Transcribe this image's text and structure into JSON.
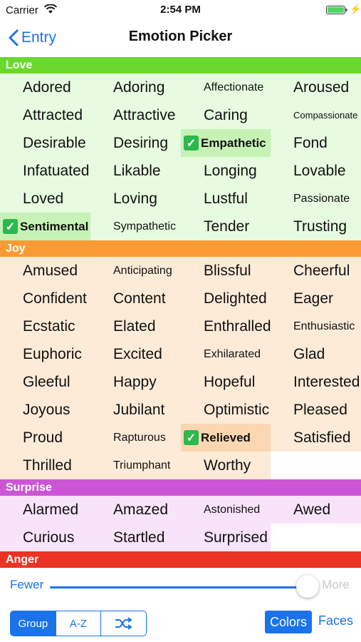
{
  "status": {
    "carrier": "Carrier",
    "time": "2:54 PM"
  },
  "nav": {
    "back_label": "Entry",
    "title": "Emotion Picker"
  },
  "sections": [
    {
      "name": "Love",
      "header_color": "#6bd82e",
      "cell_color": "#e6fbe0",
      "selected_color": "#c7f2b6",
      "items": [
        {
          "label": "Adored",
          "size": "normal"
        },
        {
          "label": "Adoring",
          "size": "normal"
        },
        {
          "label": "Affectionate",
          "size": "small"
        },
        {
          "label": "Aroused",
          "size": "normal"
        },
        {
          "label": "Attracted",
          "size": "normal"
        },
        {
          "label": "Attractive",
          "size": "normal"
        },
        {
          "label": "Caring",
          "size": "normal"
        },
        {
          "label": "Compassionate",
          "size": "xsmall"
        },
        {
          "label": "Desirable",
          "size": "normal"
        },
        {
          "label": "Desiring",
          "size": "normal"
        },
        {
          "label": "Empathetic",
          "size": "normal",
          "selected": true
        },
        {
          "label": "Fond",
          "size": "normal"
        },
        {
          "label": "Infatuated",
          "size": "normal"
        },
        {
          "label": "Likable",
          "size": "normal"
        },
        {
          "label": "Longing",
          "size": "normal"
        },
        {
          "label": "Lovable",
          "size": "normal"
        },
        {
          "label": "Loved",
          "size": "normal"
        },
        {
          "label": "Loving",
          "size": "normal"
        },
        {
          "label": "Lustful",
          "size": "normal"
        },
        {
          "label": "Passionate",
          "size": "small"
        },
        {
          "label": "Sentimental",
          "size": "normal",
          "selected": true
        },
        {
          "label": "Sympathetic",
          "size": "small"
        },
        {
          "label": "Tender",
          "size": "normal"
        },
        {
          "label": "Trusting",
          "size": "normal"
        }
      ]
    },
    {
      "name": "Joy",
      "header_color": "#f99b35",
      "cell_color": "#fdebd8",
      "selected_color": "#fad7b0",
      "items": [
        {
          "label": "Amused",
          "size": "normal"
        },
        {
          "label": "Anticipating",
          "size": "small"
        },
        {
          "label": "Blissful",
          "size": "normal"
        },
        {
          "label": "Cheerful",
          "size": "normal"
        },
        {
          "label": "Confident",
          "size": "normal"
        },
        {
          "label": "Content",
          "size": "normal"
        },
        {
          "label": "Delighted",
          "size": "normal"
        },
        {
          "label": "Eager",
          "size": "normal"
        },
        {
          "label": "Ecstatic",
          "size": "normal"
        },
        {
          "label": "Elated",
          "size": "normal"
        },
        {
          "label": "Enthralled",
          "size": "normal"
        },
        {
          "label": "Enthusiastic",
          "size": "small"
        },
        {
          "label": "Euphoric",
          "size": "normal"
        },
        {
          "label": "Excited",
          "size": "normal"
        },
        {
          "label": "Exhilarated",
          "size": "small"
        },
        {
          "label": "Glad",
          "size": "normal"
        },
        {
          "label": "Gleeful",
          "size": "normal"
        },
        {
          "label": "Happy",
          "size": "normal"
        },
        {
          "label": "Hopeful",
          "size": "normal"
        },
        {
          "label": "Interested",
          "size": "normal"
        },
        {
          "label": "Joyous",
          "size": "normal"
        },
        {
          "label": "Jubilant",
          "size": "normal"
        },
        {
          "label": "Optimistic",
          "size": "normal"
        },
        {
          "label": "Pleased",
          "size": "normal"
        },
        {
          "label": "Proud",
          "size": "normal"
        },
        {
          "label": "Rapturous",
          "size": "small"
        },
        {
          "label": "Relieved",
          "size": "normal",
          "selected": true
        },
        {
          "label": "Satisfied",
          "size": "normal"
        },
        {
          "label": "Thrilled",
          "size": "normal"
        },
        {
          "label": "Triumphant",
          "size": "small"
        },
        {
          "label": "Worthy",
          "size": "normal"
        }
      ]
    },
    {
      "name": "Surprise",
      "header_color": "#cc55d6",
      "cell_color": "#f8e3fa",
      "selected_color": "#efc6f3",
      "items": [
        {
          "label": "Alarmed",
          "size": "normal"
        },
        {
          "label": "Amazed",
          "size": "normal"
        },
        {
          "label": "Astonished",
          "size": "small"
        },
        {
          "label": "Awed",
          "size": "normal"
        },
        {
          "label": "Curious",
          "size": "normal"
        },
        {
          "label": "Startled",
          "size": "normal"
        },
        {
          "label": "Surprised",
          "size": "normal"
        }
      ]
    },
    {
      "name": "Anger",
      "header_color": "#ea3323",
      "cell_color": "#fde0dd",
      "selected_color": "#f8c0ba",
      "items": []
    }
  ],
  "slider": {
    "fewer_label": "Fewer",
    "more_label": "More",
    "value_fraction": 1.0
  },
  "toolbar": {
    "segments": [
      {
        "label": "Group",
        "active": true
      },
      {
        "label": "A-Z",
        "active": false
      },
      {
        "label": "",
        "icon": "shuffle-icon",
        "active": false
      }
    ],
    "colors_label": "Colors",
    "faces_label": "Faces"
  },
  "colors": {
    "accent": "#1a73e8",
    "check": "#2db84d"
  }
}
